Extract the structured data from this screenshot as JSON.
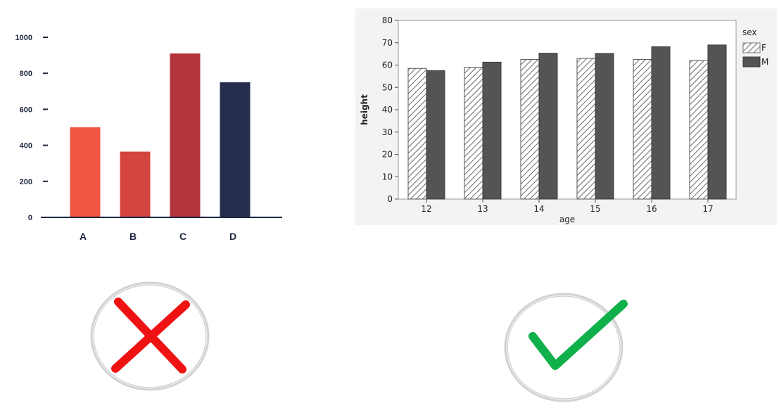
{
  "colors": {
    "left_bars": [
      "#ef5744",
      "#d44540",
      "#b3343a",
      "#262e4d"
    ],
    "axis_dark": "#1f2740",
    "right_panel_bg": "#f3f3f3",
    "right_plot_bg": "#ffffff",
    "series_F_fill": "#ffffff",
    "series_M_fill": "#545454",
    "cross_color": "#ee1212",
    "check_color": "#10b04a",
    "circle_color": "#d2d2d2"
  },
  "icons": {
    "wrong": "cross-icon",
    "right": "checkmark-icon"
  },
  "chart_data": [
    {
      "type": "bar",
      "categories": [
        "A",
        "B",
        "C",
        "D"
      ],
      "values": [
        500,
        365,
        910,
        750
      ],
      "yticks": [
        "0",
        "200",
        "400",
        "600",
        "800",
        "1000"
      ],
      "ylim": [
        0,
        1000
      ],
      "title": "",
      "xlabel": "",
      "ylabel": "",
      "grid": false,
      "legend": "none"
    },
    {
      "type": "bar",
      "categories": [
        "12",
        "13",
        "14",
        "15",
        "16",
        "17"
      ],
      "series": [
        {
          "name": "F",
          "values": [
            58.5,
            59,
            62.5,
            63,
            62.5,
            62
          ]
        },
        {
          "name": "M",
          "values": [
            57.5,
            61.3,
            65.3,
            65.2,
            68.2,
            69
          ]
        }
      ],
      "yticks": [
        "0",
        "10",
        "20",
        "30",
        "40",
        "50",
        "60",
        "70",
        "80"
      ],
      "ylim": [
        0,
        80
      ],
      "title": "",
      "xlabel": "age",
      "ylabel": "height",
      "legend_title": "sex",
      "legend": "right",
      "grid": false
    }
  ]
}
